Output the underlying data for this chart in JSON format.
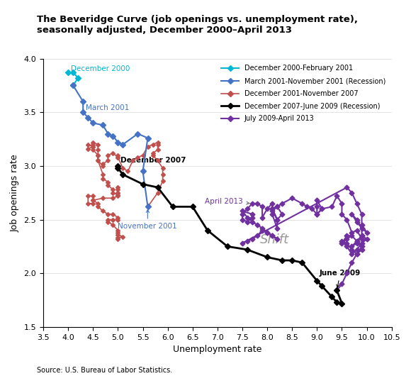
{
  "title": "The Beveridge Curve (job openings vs. unemployment rate),\nseasonally adjusted, December 2000–April 2013",
  "xlabel": "Unemployment rate",
  "ylabel": "Job openings rate",
  "xlim": [
    3.5,
    10.5
  ],
  "ylim": [
    1.5,
    4.0
  ],
  "xticks": [
    3.5,
    4.0,
    4.5,
    5.0,
    5.5,
    6.0,
    6.5,
    7.0,
    7.5,
    8.0,
    8.5,
    9.0,
    9.5,
    10.0,
    10.5
  ],
  "yticks": [
    1.5,
    2.0,
    2.5,
    3.0,
    3.5,
    4.0
  ],
  "source": "Source: U.S. Bureau of Labor Statistics.",
  "colors": {
    "seg1": "#00B8D4",
    "seg2": "#4472C4",
    "seg3": "#C0504D",
    "seg4": "#000000",
    "seg5": "#7030A0"
  },
  "seg1_label": "December 2000-February 2001",
  "seg2_label": "March 2001-November 2001 (Recession)",
  "seg3_label": "December 2001-November 2007",
  "seg4_label": "December 2007-June 2009 (Recession)",
  "seg5_label": "July 2009-April 2013",
  "seg1": {
    "unemp": [
      4.0,
      4.1,
      4.2,
      4.1
    ],
    "jobs": [
      3.87,
      3.87,
      3.82,
      3.75
    ]
  },
  "seg2": {
    "unemp": [
      4.1,
      4.3,
      4.3,
      4.4,
      4.5,
      4.7,
      4.8,
      4.9,
      5.0,
      5.1,
      5.4,
      5.6,
      5.5,
      5.6
    ],
    "jobs": [
      3.75,
      3.6,
      3.5,
      3.45,
      3.4,
      3.38,
      3.3,
      3.28,
      3.22,
      3.2,
      3.3,
      3.26,
      2.95,
      2.62
    ]
  },
  "seg3": {
    "unemp": [
      5.6,
      5.8,
      5.9,
      5.9,
      5.9,
      5.8,
      5.7,
      5.7,
      5.8,
      5.8,
      5.8,
      5.7,
      5.6,
      5.5,
      5.4,
      5.3,
      5.2,
      5.1,
      5.0,
      5.0,
      5.0,
      4.9,
      4.8,
      4.8,
      4.7,
      4.7,
      4.6,
      4.6,
      4.6,
      4.6,
      4.5,
      4.5,
      4.5,
      4.4,
      4.4,
      4.5,
      4.5,
      4.6,
      4.6,
      4.7,
      4.7,
      4.8,
      4.8,
      4.9,
      4.9,
      5.0,
      5.0,
      5.0,
      5.0,
      5.0,
      5.0,
      4.9,
      4.7,
      4.5,
      4.5,
      4.4,
      4.4,
      4.5,
      4.5,
      4.6,
      4.6,
      4.7,
      4.8,
      4.9,
      5.0,
      5.0,
      4.9,
      4.8,
      4.8,
      4.9,
      5.0,
      5.0,
      5.0,
      5.1,
      5.0,
      5.0
    ],
    "jobs": [
      2.62,
      2.75,
      2.86,
      2.92,
      2.98,
      3.05,
      3.1,
      3.12,
      3.15,
      3.2,
      3.22,
      3.2,
      3.18,
      3.1,
      3.08,
      3.05,
      2.95,
      2.98,
      3.08,
      3.1,
      3.08,
      3.12,
      3.1,
      3.05,
      3.02,
      3.0,
      3.05,
      3.1,
      3.15,
      3.2,
      3.22,
      3.2,
      3.18,
      3.16,
      3.2,
      3.18,
      3.15,
      3.1,
      3.05,
      2.92,
      2.88,
      2.85,
      2.82,
      2.78,
      2.75,
      2.73,
      2.75,
      2.78,
      2.8,
      2.75,
      2.72,
      2.7,
      2.7,
      2.68,
      2.65,
      2.65,
      2.72,
      2.72,
      2.68,
      2.65,
      2.62,
      2.58,
      2.55,
      2.55,
      2.52,
      2.5,
      2.5,
      2.5,
      2.48,
      2.45,
      2.4,
      2.38,
      2.36,
      2.34,
      2.33,
      2.32
    ]
  },
  "seg4": {
    "unemp": [
      5.0,
      5.0,
      5.1,
      5.5,
      5.8,
      6.1,
      6.5,
      6.8,
      7.2,
      7.6,
      8.0,
      8.3,
      8.5,
      8.7,
      9.0,
      9.1,
      9.3,
      9.4,
      9.5,
      9.4
    ],
    "jobs": [
      3.0,
      2.98,
      2.92,
      2.83,
      2.8,
      2.62,
      2.62,
      2.4,
      2.25,
      2.22,
      2.15,
      2.12,
      2.12,
      2.1,
      1.93,
      1.88,
      1.78,
      1.73,
      1.72,
      1.84
    ]
  },
  "seg5": {
    "unemp": [
      9.4,
      9.5,
      9.6,
      9.7,
      9.8,
      9.9,
      9.9,
      9.8,
      9.7,
      9.6,
      9.5,
      9.5,
      9.4,
      9.3,
      9.1,
      9.0,
      9.0,
      9.0,
      9.1,
      9.0,
      8.9,
      8.8,
      8.7,
      8.5,
      8.3,
      8.2,
      8.1,
      8.2,
      8.2,
      8.1,
      8.1,
      8.2,
      8.3,
      8.2,
      8.1,
      8.1,
      8.0,
      7.9,
      7.9,
      7.8,
      7.7,
      7.6,
      7.5,
      7.5,
      7.6,
      7.7,
      7.7,
      7.5,
      7.6,
      7.7,
      7.8,
      7.9,
      8.0,
      8.1,
      8.2,
      8.1,
      8.0,
      7.9,
      7.8,
      7.7,
      7.6,
      7.5,
      9.6,
      9.7,
      9.8,
      9.9,
      9.9,
      10.0,
      9.9,
      9.8,
      9.7,
      9.8,
      9.9,
      9.9,
      9.8,
      9.7,
      9.8,
      9.9,
      10.0,
      9.9,
      9.8,
      9.7,
      9.6,
      9.5,
      9.6,
      9.7,
      9.8,
      9.9,
      9.8,
      9.7,
      9.6,
      9.5,
      9.6
    ],
    "jobs": [
      1.84,
      1.9,
      2.0,
      2.1,
      2.18,
      2.22,
      2.32,
      2.4,
      2.38,
      2.5,
      2.55,
      2.65,
      2.72,
      2.62,
      2.6,
      2.55,
      2.62,
      2.68,
      2.6,
      2.55,
      2.6,
      2.62,
      2.65,
      2.7,
      2.65,
      2.62,
      2.6,
      2.5,
      2.42,
      2.55,
      2.58,
      2.62,
      2.55,
      2.5,
      2.6,
      2.65,
      2.6,
      2.52,
      2.62,
      2.65,
      2.65,
      2.6,
      2.55,
      2.5,
      2.48,
      2.52,
      2.55,
      2.58,
      2.52,
      2.48,
      2.45,
      2.42,
      2.38,
      2.35,
      2.32,
      2.35,
      2.38,
      2.4,
      2.35,
      2.32,
      2.3,
      2.28,
      2.8,
      2.75,
      2.65,
      2.55,
      2.45,
      2.38,
      2.42,
      2.48,
      2.55,
      2.5,
      2.42,
      2.35,
      2.28,
      2.25,
      2.3,
      2.35,
      2.32,
      2.28,
      2.22,
      2.18,
      2.25,
      2.3,
      2.28,
      2.22,
      2.18,
      2.25,
      2.3,
      2.35,
      2.32,
      2.28,
      2.35
    ]
  }
}
